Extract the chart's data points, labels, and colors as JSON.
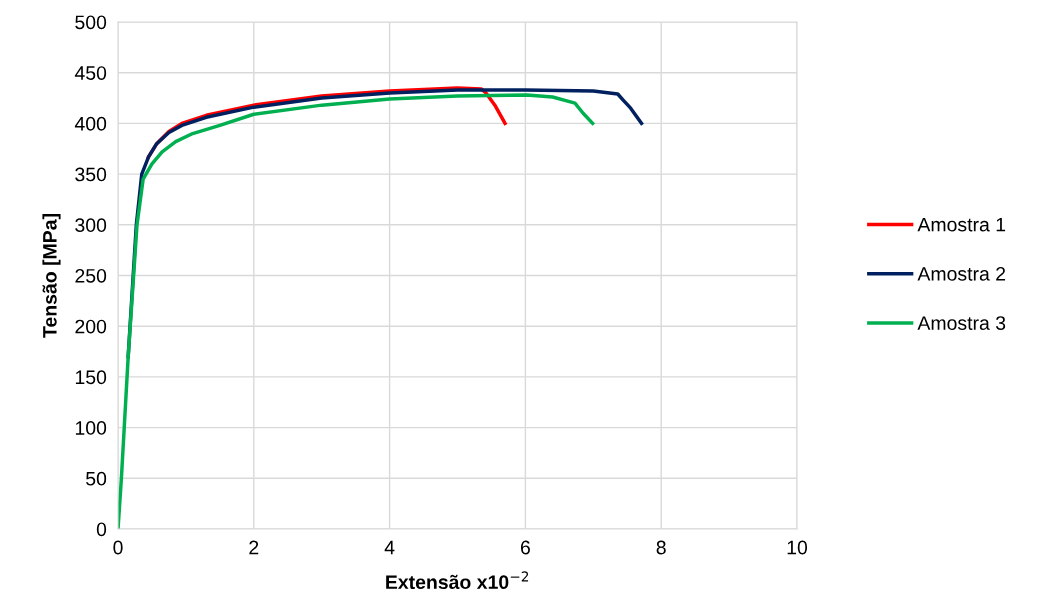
{
  "chart_data": {
    "type": "line",
    "xlabel": "Extensão x10$^{−2}$",
    "ylabel": "Tensão [MPa]",
    "xlim": [
      0,
      10
    ],
    "xticks": [
      0,
      2,
      4,
      6,
      8,
      10
    ],
    "ylim": [
      0,
      500
    ],
    "yticks": [
      0,
      50,
      100,
      150,
      200,
      250,
      300,
      350,
      400,
      450,
      500
    ],
    "grid": true,
    "legend": "right",
    "marker": "none",
    "line_style": "solid",
    "series": [
      {
        "name": "Amostra 1",
        "color": "#ff0000",
        "x": [
          0.45,
          0.57,
          0.75,
          0.94,
          1.3,
          2.0,
          3.0,
          4.0,
          5.0,
          5.35,
          5.42,
          5.55,
          5.7
        ],
        "values": [
          367,
          380,
          392,
          400,
          408,
          418,
          427,
          432,
          435,
          434,
          430,
          418,
          400
        ]
      },
      {
        "name": "Amostra 2",
        "color": "#002060",
        "x": [
          0.15,
          0.27,
          0.35,
          0.45,
          0.57,
          0.75,
          0.94,
          1.3,
          2.0,
          3.0,
          4.0,
          5.0,
          6.0,
          7.0,
          7.36,
          7.44,
          7.55,
          7.71
        ],
        "values": [
          170,
          300,
          350,
          367,
          380,
          391,
          398,
          406,
          416,
          425,
          430,
          433,
          433,
          432,
          429,
          423,
          415,
          400
        ]
      },
      {
        "name": "Amostra 3",
        "color": "#00b050",
        "x": [
          0,
          0.05,
          0.15,
          0.28,
          0.37,
          0.5,
          0.65,
          0.85,
          1.1,
          1.5,
          2.0,
          3.0,
          4.0,
          5.0,
          6.02,
          6.4,
          6.73,
          6.85,
          6.99
        ],
        "values": [
          0,
          50,
          170,
          300,
          345,
          360,
          372,
          382,
          390,
          398,
          409,
          418,
          424,
          427,
          428,
          426,
          420,
          410,
          400
        ]
      }
    ]
  }
}
